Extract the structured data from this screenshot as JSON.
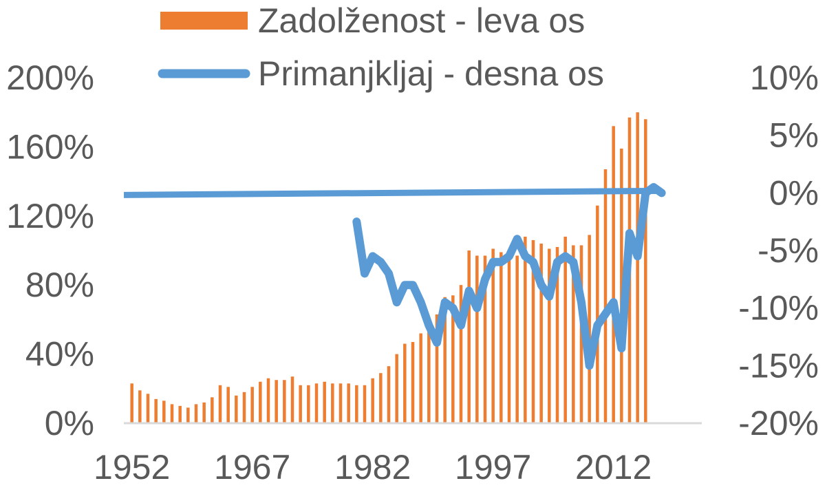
{
  "chart_data": {
    "type": "bar+line",
    "title": "",
    "x": [
      1952,
      1953,
      1954,
      1955,
      1956,
      1957,
      1958,
      1959,
      1960,
      1961,
      1962,
      1963,
      1964,
      1965,
      1966,
      1967,
      1968,
      1969,
      1970,
      1971,
      1972,
      1973,
      1974,
      1975,
      1976,
      1977,
      1978,
      1979,
      1980,
      1981,
      1982,
      1983,
      1984,
      1985,
      1986,
      1987,
      1988,
      1989,
      1990,
      1991,
      1992,
      1993,
      1994,
      1995,
      1996,
      1997,
      1998,
      1999,
      2000,
      2001,
      2002,
      2003,
      2004,
      2005,
      2006,
      2007,
      2008,
      2009,
      2010,
      2011,
      2012,
      2013,
      2014,
      2015,
      2016
    ],
    "x_tick_labels": [
      "1952",
      "1967",
      "1982",
      "1997",
      "2012"
    ],
    "x_ticks": [
      1952,
      1967,
      1982,
      1997,
      2012
    ],
    "x_range": [
      1951,
      2023
    ],
    "y_left": {
      "range": [
        0,
        200
      ],
      "ticks": [
        0,
        40,
        80,
        120,
        160,
        200
      ],
      "tick_labels": [
        "0%",
        "40%",
        "80%",
        "120%",
        "160%",
        "200%"
      ]
    },
    "y_right": {
      "range": [
        -20,
        10
      ],
      "ticks": [
        -20,
        -15,
        -10,
        -5,
        0,
        5,
        10
      ],
      "tick_labels": [
        "-20%",
        "-15%",
        "-10%",
        "-5%",
        "0%",
        "5%",
        "10%"
      ]
    },
    "grid": false,
    "legend_position": "top",
    "series": [
      {
        "name": "Zadolženost - leva os",
        "type": "bar",
        "axis": "left",
        "color": "#ED7D31",
        "values": [
          23,
          19,
          17,
          14,
          13,
          11,
          10,
          9,
          11,
          12,
          15,
          22,
          21,
          16,
          18,
          21,
          24,
          26,
          25,
          25,
          27,
          22,
          22,
          23,
          24,
          23,
          23,
          23,
          22,
          22,
          26,
          29,
          33,
          40,
          46,
          47,
          52,
          57,
          63,
          73,
          74,
          80,
          100,
          97,
          97,
          101,
          99,
          95,
          97,
          108,
          106,
          104,
          101,
          102,
          108,
          103,
          103,
          109,
          126,
          147,
          172,
          159,
          177,
          180,
          176
        ]
      },
      {
        "name": "Primanjkljaj - desna os",
        "type": "line",
        "axis": "right",
        "color": "#5B9BD5",
        "x": [
          1980,
          1981,
          1982,
          1983,
          1984,
          1985,
          1986,
          1987,
          1988,
          1989,
          1990,
          1991,
          1992,
          1993,
          1994,
          1995,
          1996,
          1997,
          1998,
          1999,
          2000,
          2001,
          2002,
          2003,
          2004,
          2005,
          2006,
          2007,
          2008,
          2009,
          2010,
          2011,
          2012,
          2013,
          2014,
          2015,
          2016,
          2017,
          2018
        ],
        "values": [
          -2.5,
          -7.0,
          -5.5,
          -6.0,
          -7.0,
          -9.5,
          -8.0,
          -8.0,
          -9.5,
          -11.5,
          -13.0,
          -9.5,
          -10.0,
          -11.5,
          -8.5,
          -10.0,
          -7.5,
          -6.0,
          -6.0,
          -5.5,
          -4.0,
          -5.5,
          -6.0,
          -8.0,
          -9.0,
          -6.0,
          -5.5,
          -6.0,
          -9.5,
          -15.0,
          -11.5,
          -10.5,
          -9.5,
          -13.5,
          -3.5,
          -5.5,
          0.0,
          0.5,
          0.0
        ]
      }
    ],
    "zero_line": {
      "axis": "right",
      "value": 0,
      "color": "#5B9BD5"
    },
    "legend": [
      {
        "label": "Zadolženost - leva os",
        "color": "#ED7D31",
        "shape": "rect"
      },
      {
        "label": "Primanjkljaj - desna os",
        "color": "#5B9BD5",
        "shape": "line"
      }
    ]
  }
}
